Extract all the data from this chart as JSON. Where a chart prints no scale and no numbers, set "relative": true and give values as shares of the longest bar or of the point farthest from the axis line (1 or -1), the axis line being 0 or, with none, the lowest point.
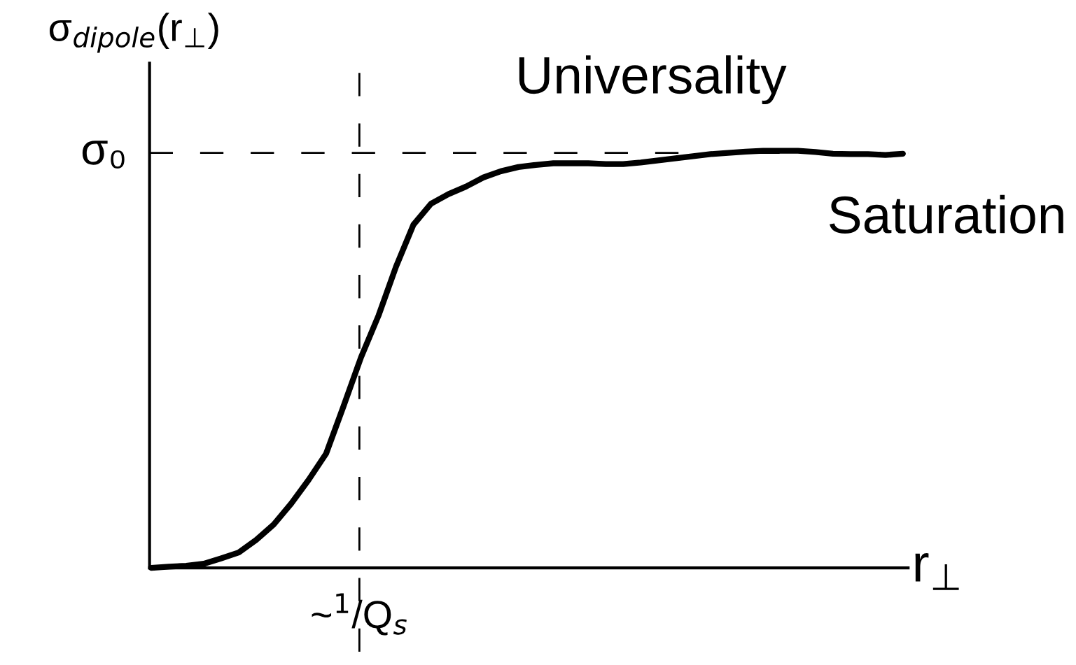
{
  "chart_data": {
    "type": "line",
    "relative": true,
    "xlabel": "r$_{⊥}$",
    "ylabel": "σ$_{dipole}$(r$_{⊥}$)",
    "categories": [
      null,
      null,
      null,
      null,
      null,
      null,
      null,
      null,
      null,
      null,
      null,
      null,
      null,
      null,
      null,
      null,
      null,
      null,
      null,
      null,
      null,
      null,
      null,
      null,
      null,
      null,
      null,
      null,
      null,
      null,
      null,
      null,
      null,
      null,
      null,
      null,
      null,
      null,
      null,
      null,
      null,
      null,
      null,
      null
    ],
    "series": [
      {
        "color": "#000000",
        "values": [
          0,
          0.003,
          0.005,
          0.01,
          0.023,
          0.037,
          0.067,
          0.104,
          0.154,
          0.211,
          0.274,
          0.388,
          0.505,
          0.605,
          0.722,
          0.823,
          0.873,
          0.896,
          0.914,
          0.936,
          0.951,
          0.961,
          0.966,
          0.97,
          0.97,
          0.97,
          0.968,
          0.968,
          0.972,
          0.977,
          0.982,
          0.987,
          0.992,
          0.995,
          0.998,
          1,
          1,
          1,
          0.997,
          0.993,
          0.992,
          0.992,
          0.99,
          0.993
        ]
      }
    ],
    "ref_lines": [
      {
        "axis": "y",
        "value": 0.995,
        "label": "σ₀",
        "color": "#000000",
        "line_style": "dashed"
      }
    ],
    "annotations": [
      "Universality",
      "Saturation",
      "~$^{1}$/Q$_{s}$"
    ],
    "line_style": "solid",
    "marker": "none"
  }
}
